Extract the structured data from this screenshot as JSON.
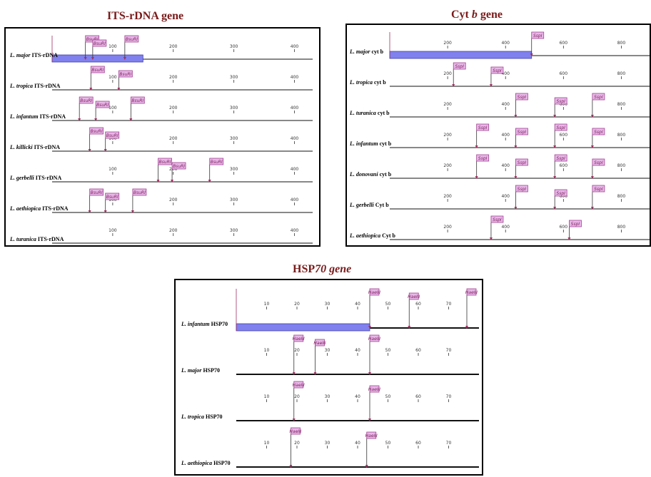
{
  "titles": {
    "its": "ITS-rDNA gene",
    "cyt_pre": "Cyt ",
    "cyt_italic": "b",
    "cyt_post": " gene",
    "hsp_pre": "HSP",
    "hsp_italic": "70 gene"
  },
  "its": {
    "ticks": [
      "100",
      "200",
      "300",
      "400"
    ],
    "tick_values": [
      100,
      200,
      300,
      400
    ],
    "x_range": [
      0,
      430
    ],
    "enzyme": "BsuRI",
    "first_bar_end": 150,
    "rows": [
      {
        "label_italic": "L. major",
        "label_rest": " ITS-rDNA",
        "sites": [
          55,
          67,
          120
        ]
      },
      {
        "label_italic": "L. tropica",
        "label_rest": " ITS-rDNA",
        "sites": [
          64,
          110
        ]
      },
      {
        "label_italic": "L. infantum",
        "label_rest": " ITS-rDNA",
        "sites": [
          45,
          72,
          130
        ]
      },
      {
        "label_italic": "L. killicki",
        "label_rest": " ITS-rDNA",
        "sites": [
          62,
          88
        ]
      },
      {
        "label_italic": "L. gerbelli",
        "label_rest": " ITS-rDNA",
        "sites": [
          175,
          198,
          260
        ]
      },
      {
        "label_italic": "L. aethiopica",
        "label_rest": "  ITS-rDNA",
        "sites": [
          62,
          88,
          133
        ]
      },
      {
        "label_italic": "L. turanica",
        "label_rest": "  ITS-rDNA",
        "sites": []
      }
    ],
    "alt_ticks": [
      "300",
      "400"
    ]
  },
  "cyt": {
    "ticks": [
      "200",
      "400",
      "600",
      "800"
    ],
    "tick_values": [
      200,
      400,
      600,
      800
    ],
    "x_range": [
      0,
      900
    ],
    "enzyme": "SspI",
    "first_bar_end": 490,
    "rows": [
      {
        "label_italic": "L. major",
        "label_rest": " cyt b",
        "sites": [
          490
        ]
      },
      {
        "label_italic": "L. tropica",
        "label_rest": " cyt b",
        "sites": [
          220,
          350
        ]
      },
      {
        "label_italic": "L. turanica",
        "label_rest": " cyt b",
        "sites": [
          435,
          570,
          700
        ]
      },
      {
        "label_italic": "L. infantum",
        "label_rest": " cyt b",
        "sites": [
          300,
          435,
          570,
          700
        ]
      },
      {
        "label_italic": "L. donovani",
        "label_rest": " cyt b",
        "sites": [
          300,
          435,
          570,
          700
        ]
      },
      {
        "label_italic": "L. gerbelli",
        "label_rest": " Cyt b",
        "sites": [
          435,
          570,
          700
        ]
      },
      {
        "label_italic": "L. aethiopica",
        "label_rest": " Cyt b",
        "sites": [
          350,
          620
        ]
      }
    ]
  },
  "hsp": {
    "ticks": [
      "10",
      "20",
      "30",
      "40",
      "50",
      "60",
      "70"
    ],
    "tick_values": [
      10,
      20,
      30,
      40,
      50,
      60,
      70
    ],
    "x_range": [
      0,
      80
    ],
    "enzyme": "HaeIII",
    "first_bar_end": 44,
    "rows": [
      {
        "label_italic": "L. infantum",
        "label_rest": " HSP70",
        "sites": [
          44,
          57,
          76
        ]
      },
      {
        "label_italic": "L. major",
        "label_rest": " HSP70",
        "sites": [
          19,
          26,
          44
        ]
      },
      {
        "label_italic": "L. tropica",
        "label_rest": " HSP70",
        "sites": [
          19,
          44
        ]
      },
      {
        "label_italic": "L. aethiopica",
        "label_rest": " HSP70",
        "sites": [
          18,
          43
        ]
      }
    ]
  },
  "colors": {
    "bar_fill": "#8080ee",
    "bar_border": "#4040aa",
    "enzyme_box": "#e8b8e8",
    "enzyme_border": "#a04090",
    "title": "#7a1a1a",
    "marker": "#a03060"
  }
}
